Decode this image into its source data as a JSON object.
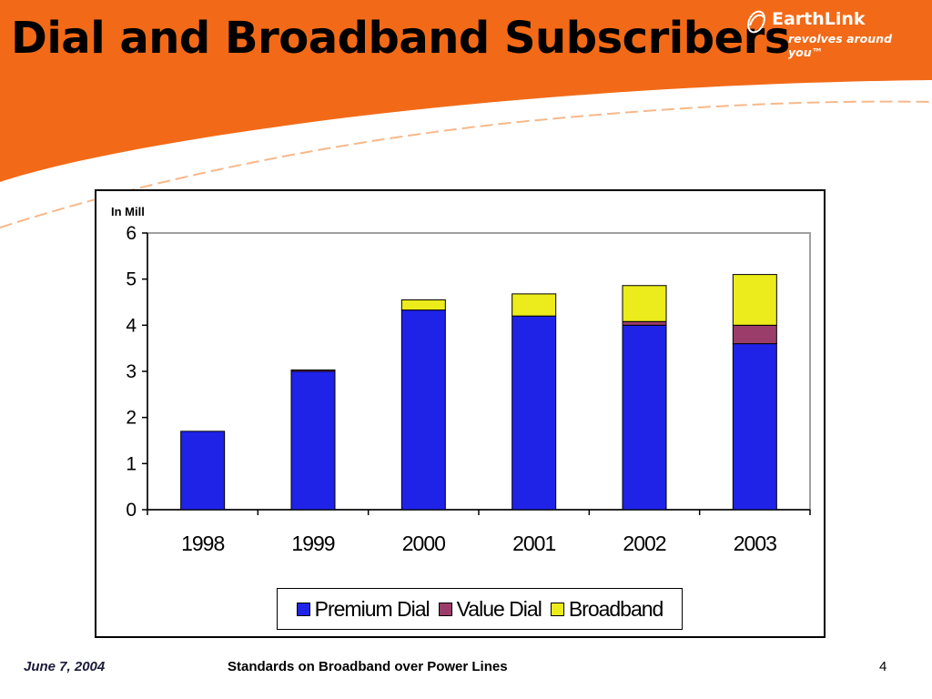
{
  "slide": {
    "title": "Dial and Broadband Subscribers",
    "footer_date": "June 7, 2004",
    "footer_center": "Standards on Broadband over Power Lines",
    "page_number": "4"
  },
  "logo": {
    "name": "EarthLink",
    "tagline": "revolves around you™"
  },
  "colors": {
    "header_orange": "#f26a17",
    "premium_dial": "#1f23e8",
    "value_dial": "#9b3d6a",
    "broadband": "#ecec1c"
  },
  "chart_data": {
    "type": "bar",
    "stacked": true,
    "unit_label": "In Mill",
    "categories": [
      "1998",
      "1999",
      "2000",
      "2001",
      "2002",
      "2003"
    ],
    "series": [
      {
        "name": "Premium Dial",
        "color": "#1f23e8",
        "values": [
          1.7,
          3.0,
          4.33,
          4.2,
          4.0,
          3.6
        ]
      },
      {
        "name": "Value Dial",
        "color": "#9b3d6a",
        "values": [
          0.0,
          0.03,
          0.0,
          0.0,
          0.08,
          0.4
        ]
      },
      {
        "name": "Broadband",
        "color": "#ecec1c",
        "values": [
          0.0,
          0.0,
          0.22,
          0.48,
          0.78,
          1.1
        ]
      }
    ],
    "ylim": [
      0,
      6
    ],
    "yticks": [
      "0",
      "1",
      "2",
      "3",
      "4",
      "5",
      "6"
    ],
    "xlabel": "",
    "ylabel": "",
    "grid": false,
    "legend_position": "bottom"
  }
}
